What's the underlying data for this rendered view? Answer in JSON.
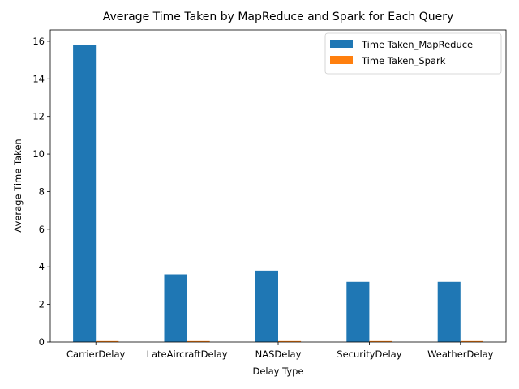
{
  "chart_data": {
    "type": "bar",
    "title": "Average Time Taken by MapReduce and Spark for Each Query",
    "xlabel": "Delay Type",
    "ylabel": "Average Time Taken",
    "categories": [
      "CarrierDelay",
      "LateAircraftDelay",
      "NASDelay",
      "SecurityDelay",
      "WeatherDelay"
    ],
    "series": [
      {
        "name": "Time Taken_MapReduce",
        "color": "#1f77b4",
        "values": [
          15.8,
          3.6,
          3.8,
          3.2,
          3.2
        ]
      },
      {
        "name": "Time Taken_Spark",
        "color": "#ff7f0e",
        "values": [
          0.05,
          0.05,
          0.05,
          0.05,
          0.05
        ]
      }
    ],
    "ylim": [
      0,
      16.6
    ],
    "yticks": [
      0,
      2,
      4,
      6,
      8,
      10,
      12,
      14,
      16
    ],
    "grid": false,
    "legend_position": "top-right"
  }
}
